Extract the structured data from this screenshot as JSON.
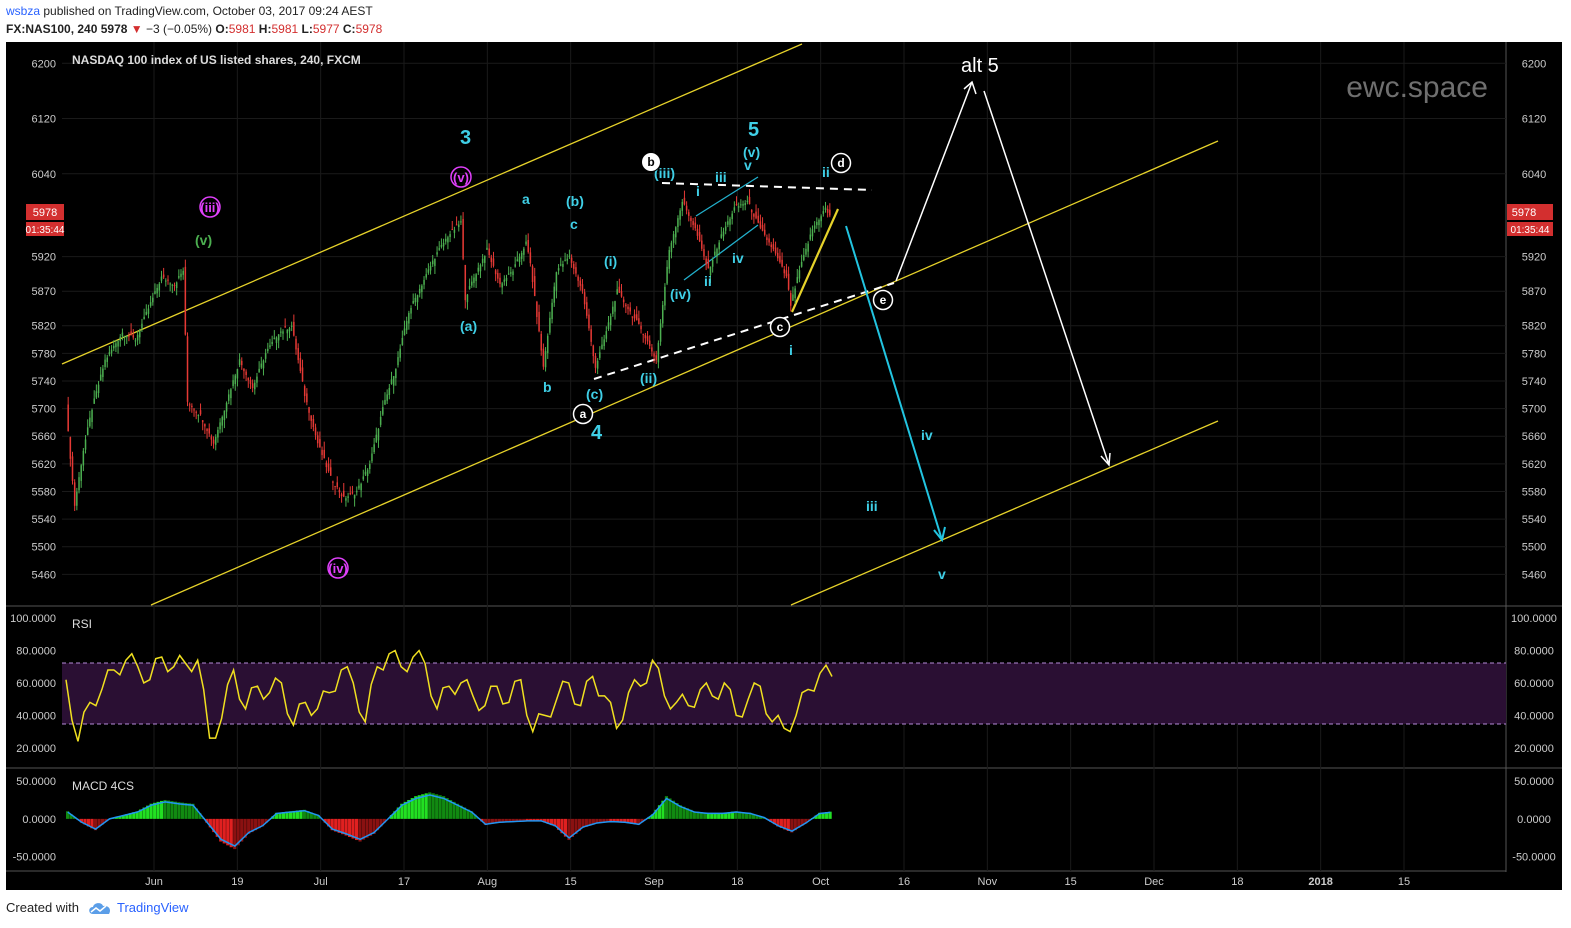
{
  "header": {
    "author": "wsbza",
    "published_text": " published on TradingView.com, October 03, 2017 09:24 AEST",
    "symbol": "FX:NAS100, 240",
    "last": "5978",
    "change_arrow": "▼",
    "change": "−3 (−0.05%)",
    "o_label": "O:",
    "o": "5981",
    "h_label": "H:",
    "h": "5981",
    "l_label": "L:",
    "l": "5977",
    "c_label": "C:",
    "c": "5978"
  },
  "chart_data": {
    "type": "candlestick",
    "title": "NASDAQ 100 index of US listed shares, 240, FXCM",
    "watermark": "ewc.space",
    "ylim": [
      5420,
      6225
    ],
    "y_ticks": [
      "6200",
      "6120",
      "6040",
      "5920",
      "5870",
      "5820",
      "5780",
      "5740",
      "5700",
      "5660",
      "5620",
      "5580",
      "5540",
      "5500",
      "5460"
    ],
    "x_ticks": [
      "Jun",
      "19",
      "Jul",
      "17",
      "Aug",
      "15",
      "Sep",
      "18",
      "Oct",
      "16",
      "Nov",
      "15",
      "Dec",
      "18",
      "2018",
      "15"
    ],
    "price_badge": "5978",
    "countdown_badge": "01:35:44",
    "price_path": [
      [
        0,
        5700
      ],
      [
        2,
        5560
      ],
      [
        4,
        5640
      ],
      [
        6,
        5700
      ],
      [
        9,
        5770
      ],
      [
        13,
        5810
      ],
      [
        16,
        5800
      ],
      [
        20,
        5860
      ],
      [
        22,
        5890
      ],
      [
        25,
        5880
      ],
      [
        27,
        5900
      ],
      [
        28,
        5710
      ],
      [
        31,
        5690
      ],
      [
        34,
        5650
      ],
      [
        37,
        5710
      ],
      [
        40,
        5770
      ],
      [
        43,
        5730
      ],
      [
        46,
        5780
      ],
      [
        49,
        5810
      ],
      [
        52,
        5820
      ],
      [
        55,
        5720
      ],
      [
        58,
        5650
      ],
      [
        61,
        5600
      ],
      [
        64,
        5570
      ],
      [
        67,
        5580
      ],
      [
        70,
        5620
      ],
      [
        73,
        5700
      ],
      [
        76,
        5760
      ],
      [
        79,
        5840
      ],
      [
        82,
        5880
      ],
      [
        85,
        5920
      ],
      [
        88,
        5950
      ],
      [
        91,
        5970
      ],
      [
        92,
        5860
      ],
      [
        94,
        5890
      ],
      [
        97,
        5930
      ],
      [
        100,
        5880
      ],
      [
        103,
        5900
      ],
      [
        106,
        5940
      ],
      [
        107,
        5910
      ],
      [
        110,
        5760
      ],
      [
        113,
        5900
      ],
      [
        116,
        5920
      ],
      [
        119,
        5870
      ],
      [
        122,
        5760
      ],
      [
        124,
        5800
      ],
      [
        127,
        5870
      ],
      [
        130,
        5840
      ],
      [
        133,
        5810
      ],
      [
        136,
        5770
      ],
      [
        139,
        5930
      ],
      [
        142,
        6000
      ],
      [
        145,
        5960
      ],
      [
        148,
        5900
      ],
      [
        151,
        5950
      ],
      [
        154,
        5990
      ],
      [
        157,
        6000
      ],
      [
        160,
        5960
      ],
      [
        163,
        5930
      ],
      [
        166,
        5890
      ],
      [
        167,
        5850
      ],
      [
        169,
        5900
      ],
      [
        172,
        5960
      ],
      [
        175,
        5990
      ],
      [
        176,
        5978
      ]
    ],
    "rsi": {
      "label": "RSI",
      "ylim": [
        10,
        105
      ],
      "y_ticks": [
        "100.0000",
        "80.0000",
        "60.0000",
        "40.0000",
        "20.0000"
      ],
      "bands": [
        30,
        70
      ],
      "values": [
        62,
        24,
        48,
        56,
        68,
        74,
        70,
        62,
        76,
        70,
        72,
        74,
        26,
        38,
        68,
        44,
        58,
        54,
        60,
        34,
        48,
        44,
        54,
        68,
        60,
        36,
        70,
        78,
        70,
        76,
        72,
        44,
        58,
        60,
        52,
        46,
        58,
        48,
        62,
        30,
        40,
        50,
        60,
        46,
        64,
        52,
        32,
        54,
        58,
        74,
        52,
        48,
        46,
        56,
        52,
        60,
        40,
        50,
        58,
        36,
        32,
        40,
        56,
        66,
        64
      ]
    },
    "macd": {
      "label": "MACD 4CS",
      "ylim": [
        -65,
        62
      ],
      "y_ticks": [
        "50.0000",
        "0.0000",
        "-50.0000"
      ],
      "values": [
        10,
        -5,
        -15,
        0,
        5,
        10,
        20,
        25,
        22,
        20,
        -5,
        -30,
        -40,
        -20,
        -10,
        8,
        10,
        12,
        5,
        -15,
        -22,
        -30,
        -20,
        0,
        20,
        30,
        35,
        30,
        20,
        10,
        -8,
        -5,
        -4,
        -3,
        -3,
        -10,
        -28,
        -12,
        -6,
        -4,
        -5,
        -8,
        6,
        30,
        18,
        10,
        8,
        8,
        10,
        8,
        2,
        -10,
        -18,
        -6,
        8,
        10
      ]
    },
    "wave_labels": [
      "3",
      "(iii)",
      "(v)",
      "(iv)",
      "(v)",
      "a",
      "(b)",
      "c",
      "(a)",
      "b",
      "(i)",
      "(c)",
      "(ii)",
      "4",
      "(iii)",
      "i",
      "iii",
      "v",
      "(v)",
      "5",
      "(iv)",
      "ii",
      "iv",
      "ii",
      "i",
      "iv",
      "iii",
      "v",
      "alt 5"
    ],
    "circle_labels": [
      "b",
      "d",
      "a",
      "c",
      "e"
    ]
  },
  "footer": {
    "created_with": "Created with",
    "brand": "TradingView"
  }
}
